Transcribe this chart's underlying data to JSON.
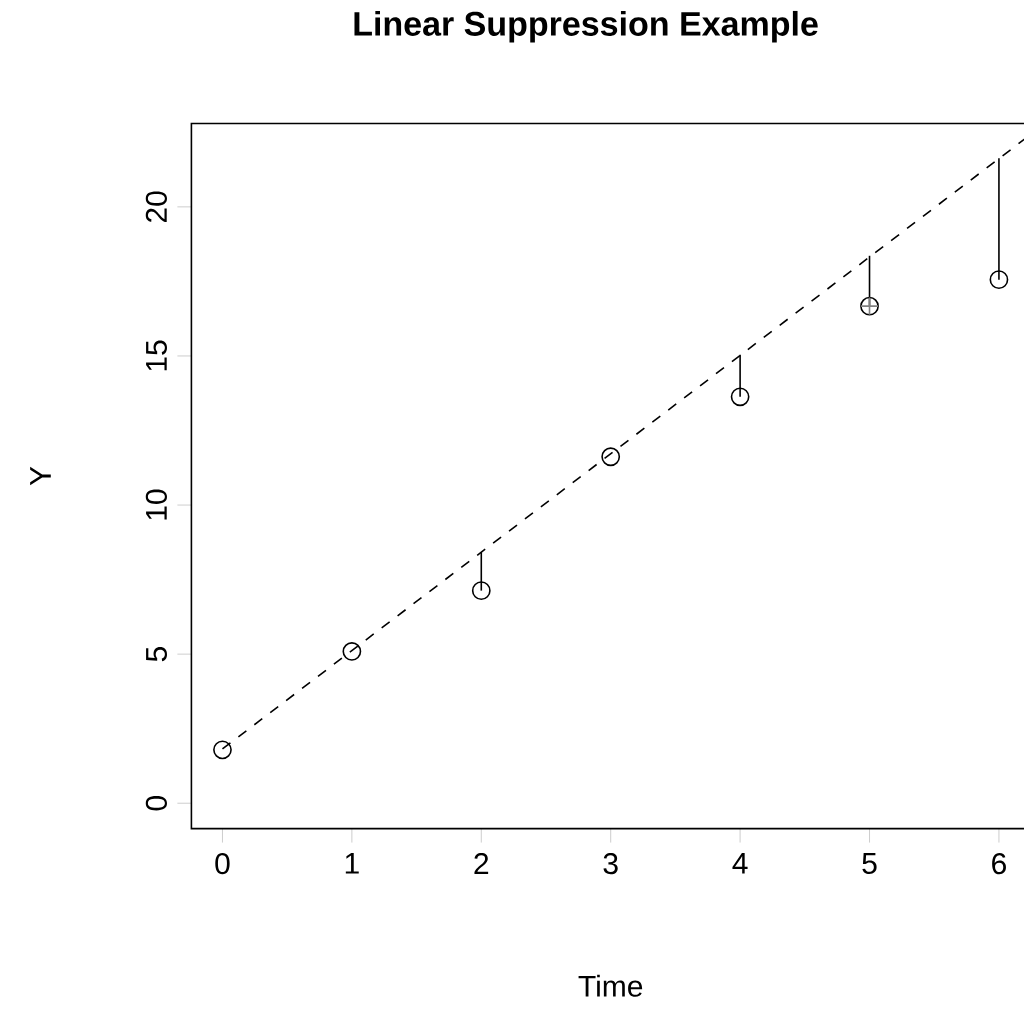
{
  "chart_data": {
    "type": "scatter",
    "title": "Linear Suppression Example",
    "xlabel": "Time",
    "ylabel": "Y",
    "xlim": [
      -0.24,
      6.24
    ],
    "ylim": [
      -0.85,
      22.8
    ],
    "xticks": [
      0,
      1,
      2,
      3,
      4,
      5,
      6
    ],
    "yticks": [
      0,
      5,
      10,
      15,
      20
    ],
    "grid": false,
    "marker": "circle",
    "series": [
      {
        "color": "#000000",
        "x": [
          0,
          1,
          2,
          3,
          4,
          5,
          6
        ],
        "values": [
          1.79,
          5.09,
          7.13,
          11.62,
          13.63,
          16.67,
          17.56
        ],
        "errors": [
          null,
          null,
          [
            7.13,
            8.42
          ],
          null,
          [
            13.63,
            15.04
          ],
          [
            16.67,
            18.36
          ],
          [
            17.56,
            21.63
          ]
        ]
      },
      {
        "color": "#808080",
        "marker": "cross",
        "x": [
          5
        ],
        "values": [
          16.67
        ]
      },
      {
        "type": "line",
        "color": "#000000",
        "line_style": "dashed",
        "marker": "none",
        "x": [
          0,
          6.24
        ],
        "values": [
          1.82,
          22.41
        ]
      }
    ]
  }
}
